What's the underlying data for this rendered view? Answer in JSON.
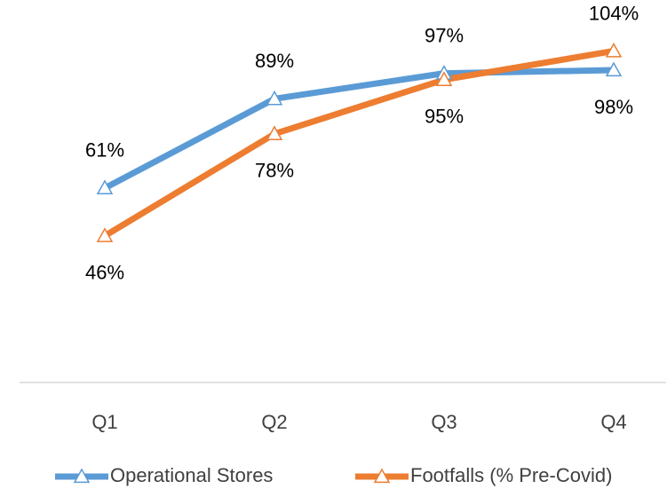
{
  "chart_data": {
    "type": "line",
    "categories": [
      "Q1",
      "Q2",
      "Q3",
      "Q4"
    ],
    "series": [
      {
        "name": "Operational Stores",
        "color": "#5b9bd5",
        "values": [
          61,
          89,
          97,
          98
        ],
        "value_labels": [
          "61%",
          "89%",
          "97%",
          "98%"
        ]
      },
      {
        "name": "Footfalls (% Pre-Covid)",
        "color": "#ed7d31",
        "values": [
          46,
          78,
          95,
          104
        ],
        "value_labels": [
          "46%",
          "78%",
          "95%",
          "104%"
        ]
      }
    ],
    "ylim": [
      0,
      120
    ],
    "marker": "triangle",
    "legend": "bottom"
  }
}
